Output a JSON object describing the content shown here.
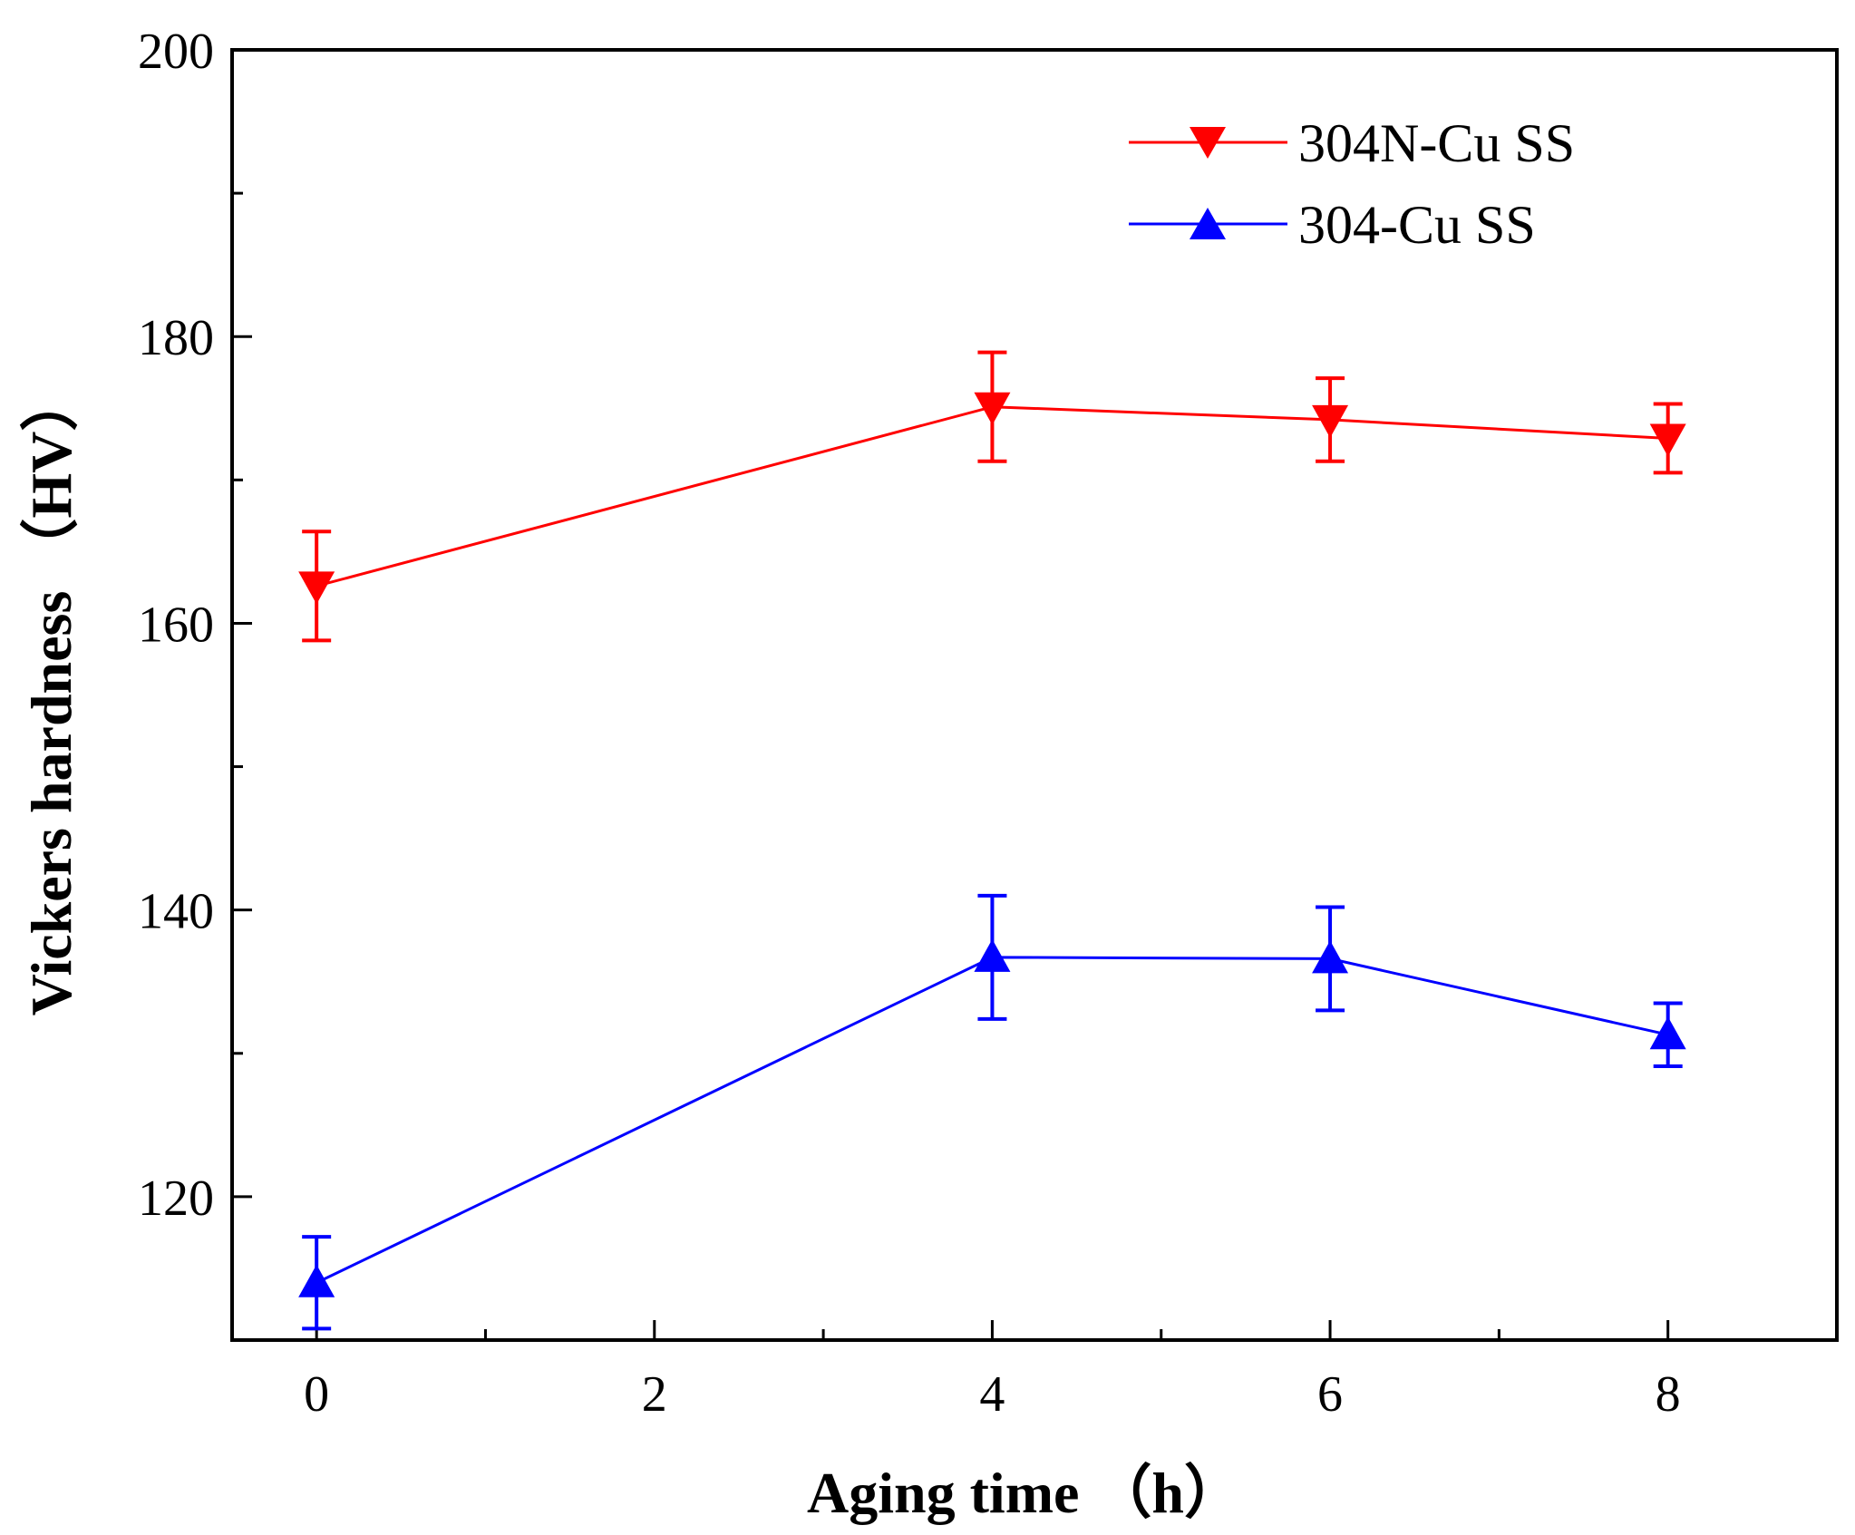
{
  "chart_data": {
    "type": "line",
    "xlabel": "Aging time （h）",
    "ylabel": "Vickers hardness （HV）",
    "xlim": [
      -0.5,
      9
    ],
    "ylim": [
      110,
      200
    ],
    "x_ticks": [
      0,
      2,
      4,
      6,
      8
    ],
    "x_minor_ticks": [
      1,
      3,
      5,
      7
    ],
    "y_ticks": [
      120,
      140,
      160,
      180,
      200
    ],
    "y_minor_ticks": [
      130,
      150,
      170,
      190
    ],
    "legend_position": "top-right",
    "series": [
      {
        "name": "304N-Cu SS",
        "color": "#ff0000",
        "marker": "triangle-down",
        "x": [
          0,
          4,
          6,
          8
        ],
        "values": [
          162.6,
          175.1,
          174.2,
          172.9
        ],
        "errors": [
          3.8,
          3.8,
          2.9,
          2.4
        ]
      },
      {
        "name": "304-Cu SS",
        "color": "#0000ff",
        "marker": "triangle-up",
        "x": [
          0,
          4,
          6,
          8
        ],
        "values": [
          114.0,
          136.7,
          136.6,
          131.3
        ],
        "errors": [
          3.2,
          4.3,
          3.6,
          2.2
        ]
      }
    ]
  }
}
